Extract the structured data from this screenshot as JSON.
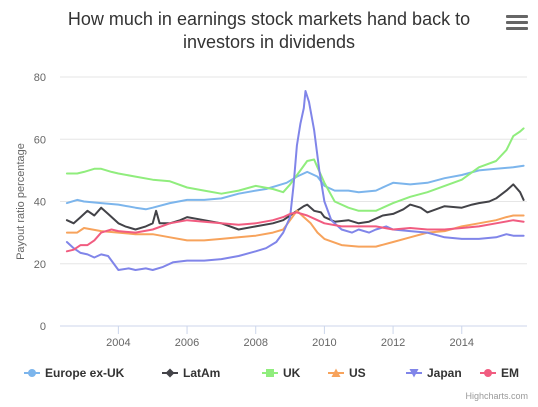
{
  "page": {
    "title": "How much in earnings stock markets hand back to investors in dividends",
    "credits": "Highcharts.com",
    "menu_icon": "hamburger-menu-icon"
  },
  "chart_data": {
    "type": "line",
    "title": "How much in earnings stock markets hand back to investors in dividends",
    "xlabel": "",
    "ylabel": "Payout ratio percentage",
    "xlim": [
      2002.3,
      2015.9
    ],
    "ylim": [
      0,
      80
    ],
    "xticks": [
      2004,
      2006,
      2008,
      2010,
      2012,
      2014
    ],
    "yticks": [
      0,
      20,
      40,
      60,
      80
    ],
    "grid": "horizontal",
    "legend_position": "bottom",
    "series": [
      {
        "name": "Europe ex-UK",
        "color": "#7cb5ec",
        "marker": "circle",
        "points": [
          [
            2002.5,
            39.5
          ],
          [
            2002.8,
            40.5
          ],
          [
            2003.0,
            40
          ],
          [
            2003.5,
            39.5
          ],
          [
            2004.0,
            39
          ],
          [
            2004.5,
            38
          ],
          [
            2004.8,
            37.5
          ],
          [
            2005.0,
            38
          ],
          [
            2005.5,
            39.5
          ],
          [
            2006.0,
            40.5
          ],
          [
            2006.5,
            40.5
          ],
          [
            2007.0,
            41
          ],
          [
            2007.5,
            42.5
          ],
          [
            2008.0,
            43.5
          ],
          [
            2008.3,
            44
          ],
          [
            2008.6,
            45
          ],
          [
            2008.9,
            46
          ],
          [
            2009.2,
            48
          ],
          [
            2009.5,
            49.5
          ],
          [
            2009.8,
            48
          ],
          [
            2010.0,
            45
          ],
          [
            2010.3,
            43.5
          ],
          [
            2010.7,
            43.5
          ],
          [
            2011.0,
            43
          ],
          [
            2011.5,
            43.5
          ],
          [
            2011.8,
            45
          ],
          [
            2012.0,
            46
          ],
          [
            2012.5,
            45.5
          ],
          [
            2013.0,
            46
          ],
          [
            2013.5,
            47.5
          ],
          [
            2014.0,
            48.5
          ],
          [
            2014.5,
            50
          ],
          [
            2015.0,
            50.5
          ],
          [
            2015.5,
            51
          ],
          [
            2015.8,
            51.5
          ]
        ]
      },
      {
        "name": "LatAm",
        "color": "#434348",
        "marker": "diamond",
        "points": [
          [
            2002.5,
            34
          ],
          [
            2002.7,
            33
          ],
          [
            2002.9,
            35
          ],
          [
            2003.1,
            37
          ],
          [
            2003.3,
            35.5
          ],
          [
            2003.5,
            38
          ],
          [
            2003.7,
            36
          ],
          [
            2004.0,
            33
          ],
          [
            2004.2,
            32
          ],
          [
            2004.5,
            31
          ],
          [
            2004.8,
            32
          ],
          [
            2005.0,
            33
          ],
          [
            2005.1,
            37
          ],
          [
            2005.2,
            33
          ],
          [
            2005.5,
            33
          ],
          [
            2005.8,
            34
          ],
          [
            2006.0,
            35
          ],
          [
            2006.5,
            34
          ],
          [
            2007.0,
            33
          ],
          [
            2007.5,
            31
          ],
          [
            2008.0,
            32
          ],
          [
            2008.5,
            33
          ],
          [
            2008.8,
            34
          ],
          [
            2009.0,
            35.5
          ],
          [
            2009.2,
            37
          ],
          [
            2009.4,
            38.5
          ],
          [
            2009.5,
            39
          ],
          [
            2009.7,
            37
          ],
          [
            2009.9,
            36.5
          ],
          [
            2010.0,
            35
          ],
          [
            2010.3,
            33.5
          ],
          [
            2010.7,
            34
          ],
          [
            2011.0,
            33
          ],
          [
            2011.3,
            33.5
          ],
          [
            2011.7,
            35.5
          ],
          [
            2012.0,
            36
          ],
          [
            2012.3,
            37.5
          ],
          [
            2012.5,
            39
          ],
          [
            2012.8,
            38
          ],
          [
            2013.0,
            36.5
          ],
          [
            2013.5,
            38.5
          ],
          [
            2014.0,
            38
          ],
          [
            2014.3,
            39
          ],
          [
            2014.5,
            39.5
          ],
          [
            2014.8,
            40
          ],
          [
            2015.0,
            41
          ],
          [
            2015.3,
            43.5
          ],
          [
            2015.5,
            45.5
          ],
          [
            2015.7,
            43
          ],
          [
            2015.8,
            40.5
          ]
        ]
      },
      {
        "name": "UK",
        "color": "#90ed7d",
        "marker": "square",
        "points": [
          [
            2002.5,
            49
          ],
          [
            2002.8,
            49
          ],
          [
            2003.0,
            49.5
          ],
          [
            2003.3,
            50.5
          ],
          [
            2003.5,
            50.5
          ],
          [
            2003.8,
            49.5
          ],
          [
            2004.0,
            49
          ],
          [
            2004.5,
            48
          ],
          [
            2005.0,
            47
          ],
          [
            2005.5,
            46.5
          ],
          [
            2006.0,
            44.5
          ],
          [
            2006.5,
            43.5
          ],
          [
            2007.0,
            42.5
          ],
          [
            2007.5,
            43.5
          ],
          [
            2008.0,
            45
          ],
          [
            2008.5,
            44
          ],
          [
            2008.8,
            43
          ],
          [
            2009.0,
            45.5
          ],
          [
            2009.3,
            50
          ],
          [
            2009.5,
            53
          ],
          [
            2009.7,
            53.5
          ],
          [
            2009.8,
            51
          ],
          [
            2010.0,
            46
          ],
          [
            2010.3,
            40
          ],
          [
            2010.7,
            38
          ],
          [
            2011.0,
            37
          ],
          [
            2011.5,
            37
          ],
          [
            2012.0,
            39.5
          ],
          [
            2012.5,
            41.5
          ],
          [
            2013.0,
            43
          ],
          [
            2013.5,
            45
          ],
          [
            2014.0,
            47
          ],
          [
            2014.5,
            51
          ],
          [
            2015.0,
            53
          ],
          [
            2015.3,
            56.5
          ],
          [
            2015.5,
            61
          ],
          [
            2015.7,
            62.5
          ],
          [
            2015.8,
            63.5
          ]
        ]
      },
      {
        "name": "US",
        "color": "#f7a35c",
        "marker": "triangle",
        "points": [
          [
            2002.5,
            30
          ],
          [
            2002.8,
            30
          ],
          [
            2003.0,
            31.5
          ],
          [
            2003.5,
            30.5
          ],
          [
            2004.0,
            30
          ],
          [
            2004.5,
            29.5
          ],
          [
            2005.0,
            29.5
          ],
          [
            2005.5,
            28.5
          ],
          [
            2006.0,
            27.5
          ],
          [
            2006.5,
            27.5
          ],
          [
            2007.0,
            28
          ],
          [
            2007.5,
            28.5
          ],
          [
            2008.0,
            29
          ],
          [
            2008.5,
            30
          ],
          [
            2008.8,
            31
          ],
          [
            2009.0,
            34
          ],
          [
            2009.2,
            37
          ],
          [
            2009.4,
            35
          ],
          [
            2009.6,
            33
          ],
          [
            2009.8,
            30
          ],
          [
            2010.0,
            28
          ],
          [
            2010.5,
            26
          ],
          [
            2011.0,
            25.5
          ],
          [
            2011.5,
            25.5
          ],
          [
            2012.0,
            27
          ],
          [
            2012.5,
            28.5
          ],
          [
            2013.0,
            30
          ],
          [
            2013.5,
            30.5
          ],
          [
            2014.0,
            32
          ],
          [
            2014.5,
            33
          ],
          [
            2015.0,
            34
          ],
          [
            2015.3,
            35
          ],
          [
            2015.5,
            35.5
          ],
          [
            2015.8,
            35.5
          ]
        ]
      },
      {
        "name": "Japan",
        "color": "#8085e9",
        "marker": "triangle-down",
        "points": [
          [
            2002.5,
            27
          ],
          [
            2002.7,
            25
          ],
          [
            2002.9,
            23.5
          ],
          [
            2003.1,
            23
          ],
          [
            2003.3,
            22
          ],
          [
            2003.5,
            23
          ],
          [
            2003.7,
            22.5
          ],
          [
            2004.0,
            18
          ],
          [
            2004.3,
            18.5
          ],
          [
            2004.5,
            18
          ],
          [
            2004.8,
            18.5
          ],
          [
            2005.0,
            18
          ],
          [
            2005.3,
            19
          ],
          [
            2005.6,
            20.5
          ],
          [
            2006.0,
            21
          ],
          [
            2006.5,
            21
          ],
          [
            2007.0,
            21.5
          ],
          [
            2007.5,
            22.5
          ],
          [
            2008.0,
            24
          ],
          [
            2008.3,
            25
          ],
          [
            2008.6,
            27
          ],
          [
            2008.8,
            30
          ],
          [
            2009.0,
            35
          ],
          [
            2009.1,
            45
          ],
          [
            2009.2,
            58
          ],
          [
            2009.3,
            65
          ],
          [
            2009.4,
            70
          ],
          [
            2009.45,
            75.5
          ],
          [
            2009.55,
            72
          ],
          [
            2009.7,
            63
          ],
          [
            2009.85,
            50
          ],
          [
            2010.0,
            40
          ],
          [
            2010.2,
            34
          ],
          [
            2010.5,
            31
          ],
          [
            2010.8,
            30
          ],
          [
            2011.0,
            31
          ],
          [
            2011.3,
            30
          ],
          [
            2011.5,
            31
          ],
          [
            2011.8,
            32
          ],
          [
            2012.0,
            31
          ],
          [
            2012.5,
            30.5
          ],
          [
            2013.0,
            30
          ],
          [
            2013.5,
            28.5
          ],
          [
            2014.0,
            28
          ],
          [
            2014.5,
            28
          ],
          [
            2015.0,
            28.5
          ],
          [
            2015.3,
            29.5
          ],
          [
            2015.5,
            29
          ],
          [
            2015.8,
            29
          ]
        ]
      },
      {
        "name": "EM",
        "color": "#f15c80",
        "marker": "circle",
        "points": [
          [
            2002.5,
            24
          ],
          [
            2002.7,
            24.5
          ],
          [
            2002.9,
            26
          ],
          [
            2003.1,
            26
          ],
          [
            2003.3,
            27.5
          ],
          [
            2003.5,
            30
          ],
          [
            2003.8,
            31
          ],
          [
            2004.0,
            30.5
          ],
          [
            2004.5,
            30
          ],
          [
            2005.0,
            31
          ],
          [
            2005.5,
            33
          ],
          [
            2006.0,
            34
          ],
          [
            2006.5,
            33.5
          ],
          [
            2007.0,
            33
          ],
          [
            2007.5,
            32.5
          ],
          [
            2008.0,
            33
          ],
          [
            2008.5,
            34
          ],
          [
            2008.8,
            35
          ],
          [
            2009.0,
            36
          ],
          [
            2009.2,
            36.5
          ],
          [
            2009.5,
            35.5
          ],
          [
            2009.8,
            34
          ],
          [
            2010.0,
            33
          ],
          [
            2010.5,
            32
          ],
          [
            2011.0,
            32
          ],
          [
            2011.5,
            32
          ],
          [
            2012.0,
            31
          ],
          [
            2012.5,
            31.5
          ],
          [
            2013.0,
            31
          ],
          [
            2013.5,
            31
          ],
          [
            2014.0,
            31.5
          ],
          [
            2014.5,
            32
          ],
          [
            2015.0,
            33
          ],
          [
            2015.5,
            34
          ],
          [
            2015.8,
            33.5
          ]
        ]
      }
    ]
  }
}
